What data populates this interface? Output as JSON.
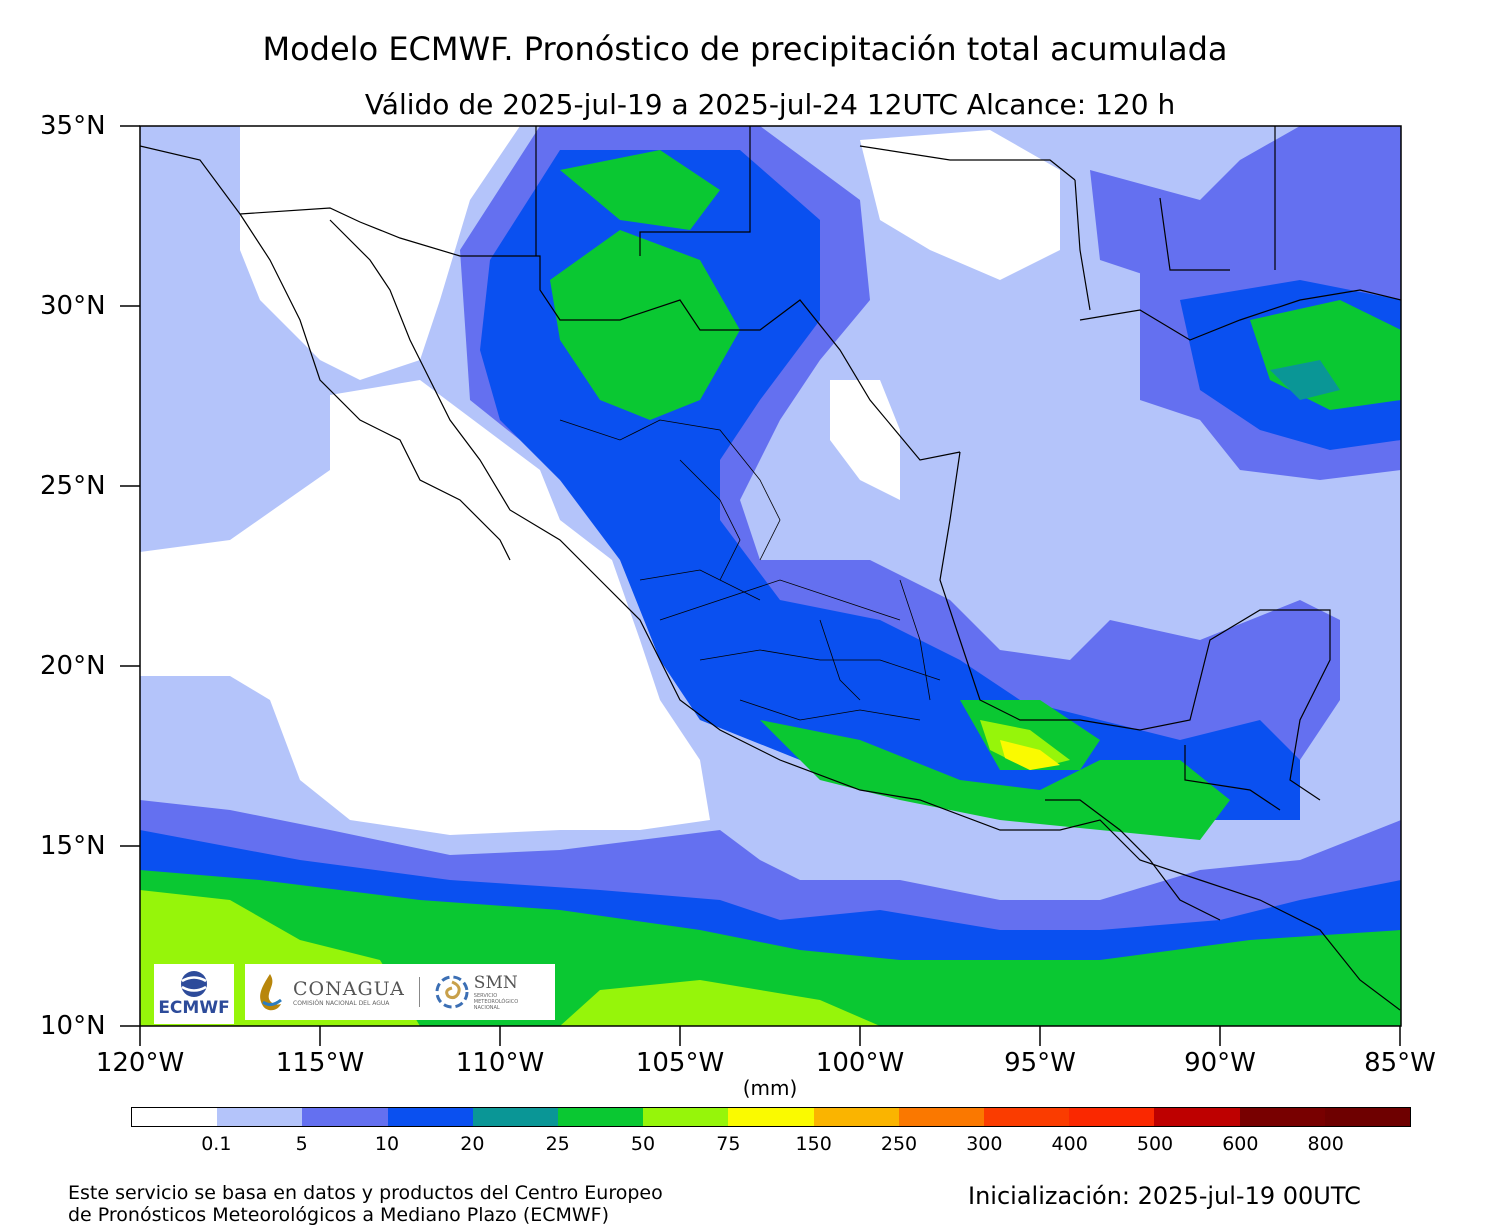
{
  "title": "Modelo ECMWF. Pronóstico de precipitación total acumulada",
  "subtitle": "Válido de 2025-jul-19 a 2025-jul-24 12UTC   Alcance: 120 h",
  "axes": {
    "lat_labels": [
      "35°N",
      "30°N",
      "25°N",
      "20°N",
      "15°N",
      "10°N"
    ],
    "lon_labels": [
      "120°W",
      "115°W",
      "110°W",
      "105°W",
      "100°W",
      "95°W",
      "90°W",
      "85°W"
    ]
  },
  "colorbar": {
    "units": "(mm)",
    "ticks": [
      "0.1",
      "5",
      "10",
      "20",
      "25",
      "50",
      "75",
      "150",
      "250",
      "300",
      "400",
      "500",
      "600",
      "800"
    ],
    "colors": [
      "#ffffff",
      "#b4c4fa",
      "#6470f0",
      "#0a50f0",
      "#0a9696",
      "#0ac832",
      "#96f50a",
      "#fafa00",
      "#fab400",
      "#fa7800",
      "#fa3c00",
      "#fa2800",
      "#be0000",
      "#780000",
      "#6e0000"
    ]
  },
  "logos": {
    "ecmwf": "ECMWF",
    "conagua": "CONAGUA",
    "conagua_sub": "COMISIÓN NACIONAL DEL AGUA",
    "smn": "SMN",
    "smn_sub": [
      "SERVICIO",
      "METEOROLÓGICO",
      "NACIONAL"
    ]
  },
  "footer": {
    "source_line1": "Este servicio se basa en datos y productos del Centro Europeo",
    "source_line2": "de Pronósticos Meteorológicos a Mediano Plazo (ECMWF)",
    "init": "Inicialización: 2025-jul-19 00UTC"
  }
}
